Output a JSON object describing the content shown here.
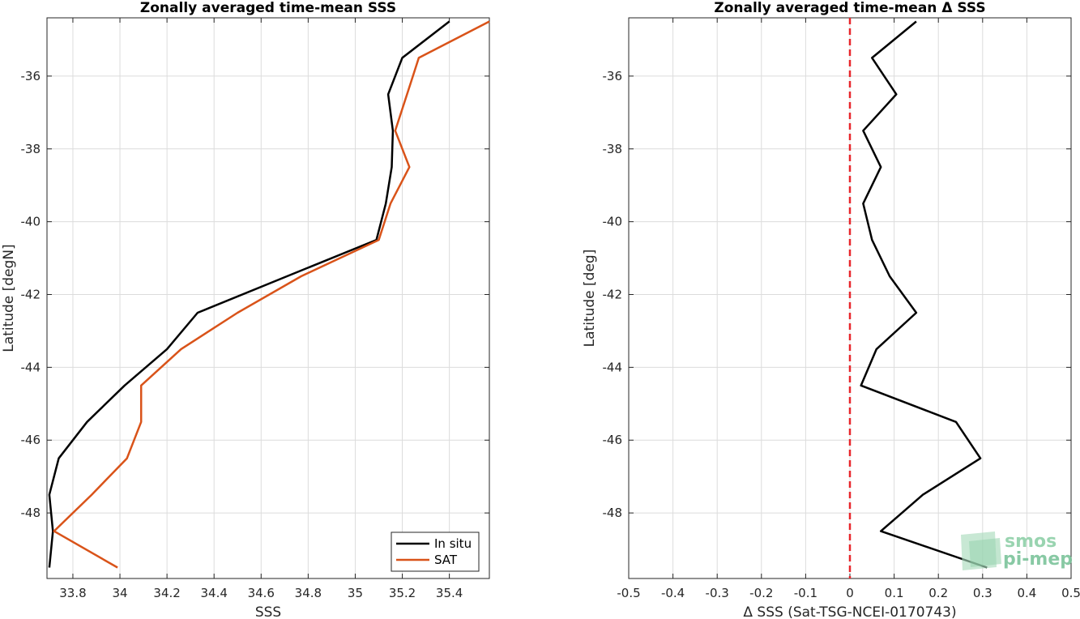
{
  "chart_data": [
    {
      "type": "line",
      "title": "Zonally averaged time-mean SSS",
      "xlabel": "SSS",
      "ylabel": "Latitude [degN]",
      "xlim": [
        33.69,
        35.57
      ],
      "ylim": [
        -49.8,
        -34.4
      ],
      "xticks": [
        33.8,
        34,
        34.2,
        34.4,
        34.6,
        34.8,
        35,
        35.2,
        35.4
      ],
      "yticks": [
        -36,
        -38,
        -40,
        -42,
        -44,
        -46,
        -48
      ],
      "grid": true,
      "legend": "bottom-right",
      "series": [
        {
          "name": "In situ",
          "color": "#000000",
          "x": [
            35.4,
            35.2,
            35.14,
            35.16,
            35.155,
            35.13,
            35.09,
            34.71,
            34.33,
            34.2,
            34.02,
            33.86,
            33.74,
            33.7,
            33.715,
            33.7
          ],
          "y": [
            -34.5,
            -35.5,
            -36.5,
            -37.5,
            -38.5,
            -39.5,
            -40.5,
            -41.5,
            -42.5,
            -43.5,
            -44.5,
            -45.5,
            -46.5,
            -47.5,
            -48.5,
            -49.5
          ]
        },
        {
          "name": "SAT",
          "color": "#d95319",
          "x": [
            35.57,
            35.27,
            35.22,
            35.17,
            35.23,
            35.15,
            35.1,
            34.77,
            34.5,
            34.26,
            34.09,
            34.09,
            34.03,
            33.88,
            33.72,
            33.99
          ],
          "y": [
            -34.5,
            -35.5,
            -36.5,
            -37.5,
            -38.5,
            -39.5,
            -40.5,
            -41.5,
            -42.5,
            -43.5,
            -44.5,
            -45.5,
            -46.5,
            -47.5,
            -48.5,
            -49.5
          ]
        }
      ]
    },
    {
      "type": "line",
      "title": "Zonally averaged time-mean Δ SSS",
      "xlabel": "Δ SSS (Sat-TSG-NCEI-0170743)",
      "ylabel": "Latitude [deg]",
      "xlim": [
        -0.5,
        0.5
      ],
      "ylim": [
        -49.8,
        -34.4
      ],
      "xticks": [
        -0.5,
        -0.4,
        -0.3,
        -0.2,
        -0.1,
        0,
        0.1,
        0.2,
        0.3,
        0.4,
        0.5
      ],
      "yticks": [
        -36,
        -38,
        -40,
        -42,
        -44,
        -46,
        -48
      ],
      "grid": true,
      "zero_line_color": "#e8262b",
      "series": [
        {
          "color": "#000000",
          "x": [
            0.15,
            0.05,
            0.105,
            0.03,
            0.07,
            0.03,
            0.05,
            0.09,
            0.15,
            0.06,
            0.025,
            0.24,
            0.295,
            0.165,
            0.07,
            0.31
          ],
          "y": [
            -34.5,
            -35.5,
            -36.5,
            -37.5,
            -38.5,
            -39.5,
            -40.5,
            -41.5,
            -42.5,
            -43.5,
            -44.5,
            -45.5,
            -46.5,
            -47.5,
            -48.5,
            -49.5
          ]
        }
      ]
    }
  ],
  "logo": {
    "line1": "smos",
    "line2": "pi-mep"
  }
}
